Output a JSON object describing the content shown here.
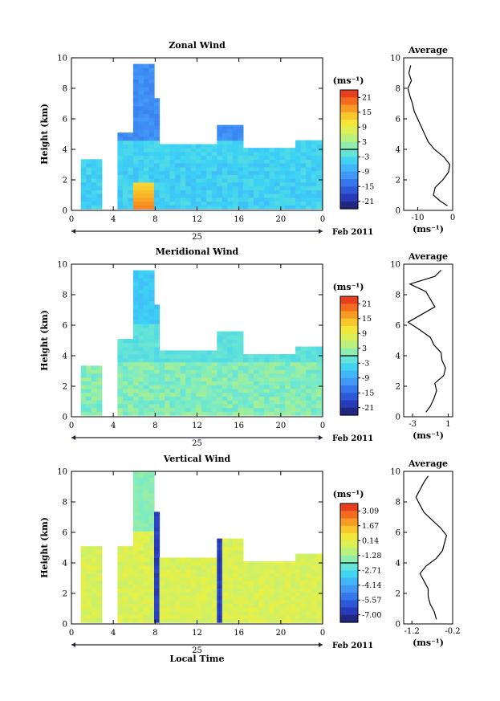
{
  "page": {
    "date_label": "Feb 2011",
    "day_label": "25",
    "xlabel_bottom": "Local Time",
    "x_ticks": [
      "0",
      "4",
      "8",
      "12",
      "16",
      "20",
      "0"
    ],
    "y_ticks": [
      "0",
      "2",
      "4",
      "6",
      "8",
      "10"
    ],
    "ylabel": "Height (km)",
    "unit_label": "(ms⁻¹)",
    "avg_title": "Average"
  },
  "chart_data": [
    {
      "type": "heatmap",
      "title": "Zonal Wind",
      "ylabel": "Height (km)",
      "xlabel": "",
      "x_range_hours": [
        0,
        24
      ],
      "ylim": [
        0,
        10
      ],
      "colorbar": {
        "unit": "(ms⁻¹)",
        "ticks": [
          "21",
          "15",
          "9",
          "3",
          "-3",
          "-9",
          "-15",
          "-21"
        ],
        "range": [
          -24,
          24
        ]
      },
      "average_profile": {
        "title": "Average",
        "xlabel": "(ms⁻¹)",
        "x_ticks": [
          "-10",
          "0"
        ],
        "xlim": [
          -14,
          0
        ],
        "height_km": [
          0.3,
          0.6,
          1.0,
          1.5,
          2.0,
          2.5,
          3.0,
          3.5,
          4.0,
          4.5,
          5.0,
          5.5,
          6.0,
          6.5,
          7.0,
          7.5,
          8.0,
          8.5,
          9.0,
          9.5
        ],
        "values": [
          -1.5,
          -3.5,
          -5.5,
          -5.0,
          -2.8,
          -1.2,
          -0.8,
          -2.5,
          -5.2,
          -7.0,
          -8.0,
          -9.0,
          -10.0,
          -11.0,
          -11.5,
          -12.2,
          -12.8,
          -11.8,
          -12.5,
          -12.0
        ]
      }
    },
    {
      "type": "heatmap",
      "title": "Meridional Wind",
      "ylabel": "Height (km)",
      "xlabel": "",
      "x_range_hours": [
        0,
        24
      ],
      "ylim": [
        0,
        10
      ],
      "colorbar": {
        "unit": "(ms⁻¹)",
        "ticks": [
          "21",
          "15",
          "9",
          "3",
          "-3",
          "-9",
          "-15",
          "-21"
        ],
        "range": [
          -24,
          24
        ]
      },
      "average_profile": {
        "title": "Average",
        "xlabel": "(ms⁻¹)",
        "x_ticks": [
          "-3",
          "1"
        ],
        "xlim": [
          -4,
          1.5
        ],
        "height_km": [
          0.3,
          0.7,
          1.2,
          1.7,
          2.2,
          2.7,
          3.2,
          3.7,
          4.2,
          4.7,
          5.2,
          5.7,
          6.2,
          6.7,
          7.2,
          7.7,
          8.2,
          8.7,
          9.2,
          9.6
        ],
        "values": [
          -1.5,
          -1.0,
          -0.6,
          -0.3,
          -0.5,
          0.5,
          0.7,
          0.3,
          0.2,
          -0.6,
          -1.0,
          -2.2,
          -3.5,
          -2.0,
          -0.5,
          -1.0,
          -1.5,
          -3.3,
          -0.5,
          0.2
        ]
      }
    },
    {
      "type": "heatmap",
      "title": "Vertical Wind",
      "ylabel": "Height (km)",
      "xlabel": "Local Time",
      "x_range_hours": [
        0,
        24
      ],
      "ylim": [
        0,
        10
      ],
      "colorbar": {
        "unit": "(ms⁻¹)",
        "ticks": [
          "3.09",
          "1.67",
          "0.14",
          "-1.28",
          "-2.71",
          "-4.14",
          "-5.57",
          "-7.00"
        ],
        "range": [
          -7.7,
          3.8
        ]
      },
      "average_profile": {
        "title": "Average",
        "xlabel": "(ms⁻¹)",
        "x_ticks": [
          "-1.2",
          "-0.2"
        ],
        "xlim": [
          -1.4,
          -0.2
        ],
        "height_km": [
          0.3,
          0.8,
          1.3,
          1.8,
          2.3,
          2.8,
          3.3,
          3.8,
          4.3,
          4.8,
          5.3,
          5.8,
          6.3,
          6.8,
          7.3,
          7.8,
          8.3,
          8.8,
          9.3,
          9.7
        ],
        "values": [
          -0.6,
          -0.65,
          -0.75,
          -0.8,
          -0.8,
          -0.9,
          -1.0,
          -0.85,
          -0.6,
          -0.45,
          -0.4,
          -0.35,
          -0.5,
          -0.7,
          -0.9,
          -1.0,
          -1.1,
          -1.0,
          -0.9,
          -0.8
        ]
      }
    }
  ]
}
